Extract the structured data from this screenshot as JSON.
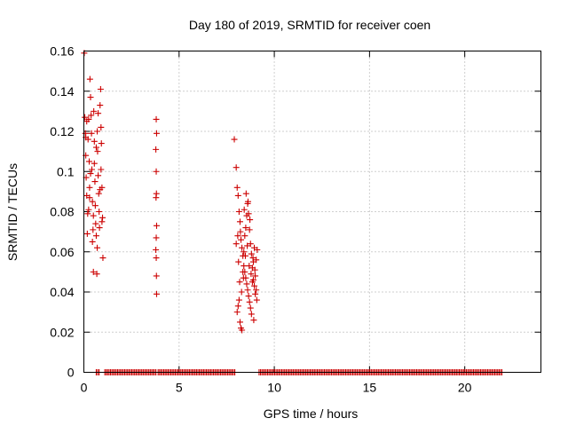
{
  "chart_data": {
    "type": "scatter",
    "title": "Day 180 of 2019, SRMTID for receiver coen",
    "xlabel": "GPS time / hours",
    "ylabel": "SRMTID / TECUs",
    "xlim": [
      0,
      24
    ],
    "ylim": [
      0,
      0.16
    ],
    "xticks": [
      0,
      5,
      10,
      15,
      20
    ],
    "yticks": [
      0,
      0.02,
      0.04,
      0.06,
      0.08,
      0.1,
      0.12,
      0.14,
      0.16
    ],
    "xtick_labels": [
      "0",
      "5",
      "10",
      "15",
      "20"
    ],
    "ytick_labels": [
      "0",
      "0.02",
      "0.04",
      "0.06",
      "0.08",
      "0.1",
      "0.12",
      "0.14",
      "0.16"
    ],
    "grid": true,
    "marker": "+",
    "color": "#cc0000",
    "series": [
      {
        "name": "SRMTID",
        "points": [
          [
            0.02,
            0.159
          ],
          [
            0.05,
            0.127
          ],
          [
            0.08,
            0.119
          ],
          [
            0.1,
            0.108
          ],
          [
            0.12,
            0.097
          ],
          [
            0.15,
            0.088
          ],
          [
            0.18,
            0.069
          ],
          [
            0.2,
            0.079
          ],
          [
            0.22,
            0.116
          ],
          [
            0.25,
            0.126
          ],
          [
            0.28,
            0.105
          ],
          [
            0.3,
            0.092
          ],
          [
            0.32,
            0.146
          ],
          [
            0.35,
            0.137
          ],
          [
            0.38,
            0.128
          ],
          [
            0.4,
            0.119
          ],
          [
            0.42,
            0.101
          ],
          [
            0.45,
            0.085
          ],
          [
            0.48,
            0.071
          ],
          [
            0.5,
            0.05
          ],
          [
            0.52,
            0.13
          ],
          [
            0.55,
            0.115
          ],
          [
            0.58,
            0.095
          ],
          [
            0.6,
            0.083
          ],
          [
            0.62,
            0.074
          ],
          [
            0.65,
            0.068
          ],
          [
            0.68,
            0.049
          ],
          [
            0.7,
            0.12
          ],
          [
            0.72,
            0.11
          ],
          [
            0.75,
            0.098
          ],
          [
            0.78,
            0.089
          ],
          [
            0.8,
            0.08
          ],
          [
            0.82,
            0.072
          ],
          [
            0.85,
            0.133
          ],
          [
            0.88,
            0.141
          ],
          [
            0.9,
            0.122
          ],
          [
            0.92,
            0.114
          ],
          [
            0.95,
            0.092
          ],
          [
            0.98,
            0.077
          ],
          [
            1.0,
            0.057
          ],
          [
            0.1,
            0.117
          ],
          [
            0.15,
            0.125
          ],
          [
            0.25,
            0.081
          ],
          [
            0.35,
            0.099
          ],
          [
            0.45,
            0.065
          ],
          [
            0.55,
            0.104
          ],
          [
            0.65,
            0.112
          ],
          [
            0.75,
            0.129
          ],
          [
            0.85,
            0.091
          ],
          [
            0.95,
            0.075
          ],
          [
            0.3,
            0.087
          ],
          [
            0.5,
            0.078
          ],
          [
            0.7,
            0.062
          ],
          [
            0.9,
            0.101
          ],
          [
            3.8,
            0.126
          ],
          [
            3.82,
            0.119
          ],
          [
            3.78,
            0.111
          ],
          [
            3.8,
            0.1
          ],
          [
            3.81,
            0.089
          ],
          [
            3.79,
            0.087
          ],
          [
            3.82,
            0.073
          ],
          [
            3.8,
            0.067
          ],
          [
            3.78,
            0.061
          ],
          [
            3.8,
            0.057
          ],
          [
            3.81,
            0.048
          ],
          [
            3.82,
            0.039
          ],
          [
            7.9,
            0.116
          ],
          [
            8.0,
            0.102
          ],
          [
            8.05,
            0.092
          ],
          [
            8.1,
            0.088
          ],
          [
            8.15,
            0.08
          ],
          [
            8.2,
            0.075
          ],
          [
            8.22,
            0.07
          ],
          [
            8.25,
            0.066
          ],
          [
            8.3,
            0.062
          ],
          [
            8.35,
            0.058
          ],
          [
            8.4,
            0.053
          ],
          [
            8.45,
            0.05
          ],
          [
            8.5,
            0.047
          ],
          [
            8.55,
            0.044
          ],
          [
            8.6,
            0.041
          ],
          [
            8.65,
            0.038
          ],
          [
            8.7,
            0.035
          ],
          [
            8.75,
            0.032
          ],
          [
            8.8,
            0.029
          ],
          [
            8.85,
            0.045
          ],
          [
            8.9,
            0.055
          ],
          [
            8.95,
            0.062
          ],
          [
            9.0,
            0.048
          ],
          [
            9.05,
            0.041
          ],
          [
            8.05,
            0.03
          ],
          [
            8.1,
            0.033
          ],
          [
            8.15,
            0.036
          ],
          [
            8.2,
            0.025
          ],
          [
            8.25,
            0.022
          ],
          [
            8.3,
            0.021
          ],
          [
            8.35,
            0.05
          ],
          [
            8.4,
            0.06
          ],
          [
            8.45,
            0.068
          ],
          [
            8.5,
            0.072
          ],
          [
            8.55,
            0.078
          ],
          [
            8.6,
            0.084
          ],
          [
            8.65,
            0.079
          ],
          [
            8.7,
            0.071
          ],
          [
            8.75,
            0.064
          ],
          [
            8.8,
            0.059
          ],
          [
            8.85,
            0.052
          ],
          [
            8.9,
            0.046
          ],
          [
            8.95,
            0.043
          ],
          [
            9.0,
            0.039
          ],
          [
            9.05,
            0.056
          ],
          [
            9.1,
            0.061
          ],
          [
            8.0,
            0.064
          ],
          [
            8.08,
            0.068
          ],
          [
            8.12,
            0.055
          ],
          [
            8.18,
            0.045
          ],
          [
            8.28,
            0.04
          ],
          [
            8.38,
            0.047
          ],
          [
            8.48,
            0.058
          ],
          [
            8.58,
            0.063
          ],
          [
            8.68,
            0.053
          ],
          [
            8.78,
            0.049
          ],
          [
            8.88,
            0.057
          ],
          [
            8.98,
            0.051
          ],
          [
            9.08,
            0.036
          ],
          [
            8.62,
            0.085
          ],
          [
            8.72,
            0.076
          ],
          [
            8.52,
            0.089
          ],
          [
            8.42,
            0.081
          ],
          [
            8.92,
            0.026
          ]
        ]
      },
      {
        "name": "zero-level",
        "segments": [
          [
            0.65,
            0.8
          ],
          [
            1.1,
            3.85
          ],
          [
            3.9,
            7.95
          ],
          [
            9.2,
            22.0
          ]
        ],
        "value": 0
      }
    ]
  }
}
